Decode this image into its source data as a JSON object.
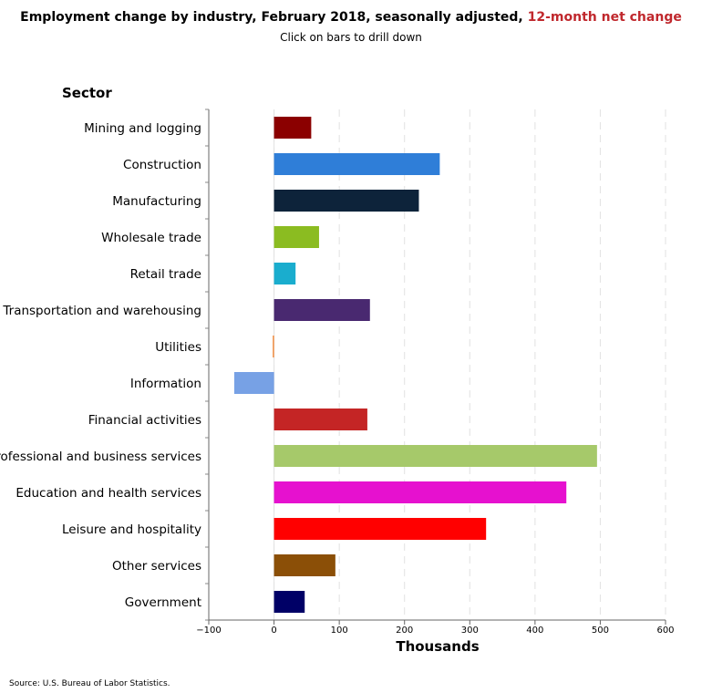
{
  "header": {
    "title_main": "Employment change by industry, February 2018, seasonally adjusted, ",
    "title_accent": "12-month net change",
    "subtitle": "Click on bars to drill down"
  },
  "footer": {
    "source": "Source: U.S. Bureau of Labor Statistics."
  },
  "chart_data": {
    "type": "bar",
    "orientation": "horizontal",
    "title": "Employment change by industry, February 2018, seasonally adjusted, 12-month net change",
    "subtitle": "Click on bars to drill down",
    "ylabel": "Sector",
    "xlabel": "Thousands",
    "xlim": [
      -100,
      600
    ],
    "xticks": [
      -100,
      0,
      100,
      200,
      300,
      400,
      500,
      600
    ],
    "grid": "vertical dashed",
    "categories": [
      "Mining and logging",
      "Construction",
      "Manufacturing",
      "Wholesale trade",
      "Retail trade",
      "Transportation and warehousing",
      "Utilities",
      "Information",
      "Financial activities",
      "Professional and business services",
      "Education and health services",
      "Leisure and hospitality",
      "Other services",
      "Government"
    ],
    "values": [
      57,
      254,
      222,
      69,
      33,
      147,
      -2,
      -61,
      143,
      495,
      448,
      325,
      94,
      47
    ],
    "colors": [
      "#8b0000",
      "#2f7ed8",
      "#0d233a",
      "#8bbc21",
      "#1aadce",
      "#492970",
      "#f28f43",
      "#77a1e5",
      "#c42525",
      "#a6c96a",
      "#e611cf",
      "#ff0000",
      "#8b4f07",
      "#000066"
    ]
  }
}
